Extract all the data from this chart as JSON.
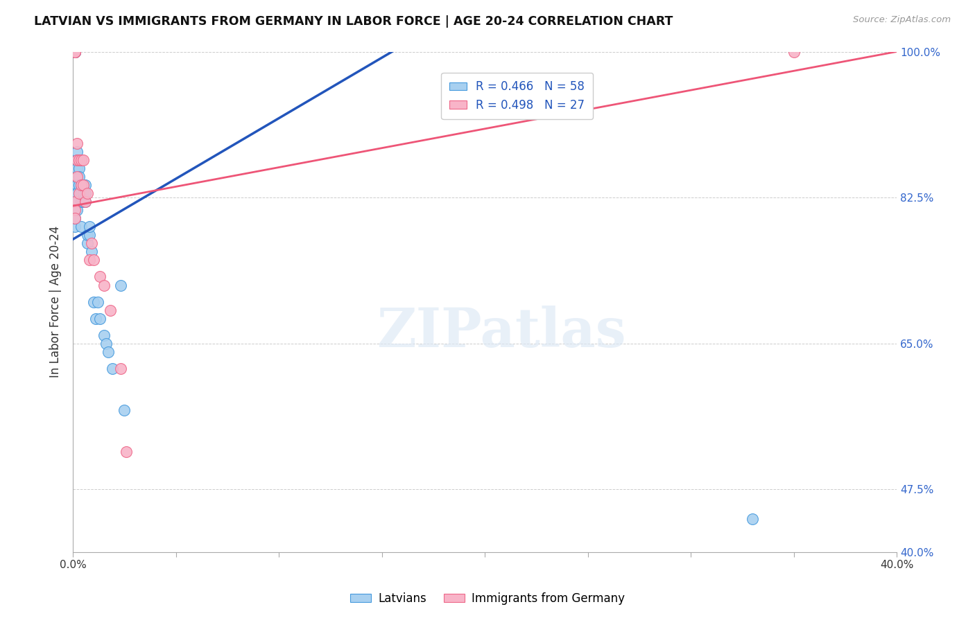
{
  "title": "LATVIAN VS IMMIGRANTS FROM GERMANY IN LABOR FORCE | AGE 20-24 CORRELATION CHART",
  "source": "Source: ZipAtlas.com",
  "ylabel": "In Labor Force | Age 20-24",
  "x_min": 0.0,
  "x_max": 0.4,
  "y_min": 0.4,
  "y_max": 1.0,
  "blue_r": 0.466,
  "blue_n": 58,
  "pink_r": 0.498,
  "pink_n": 27,
  "blue_color": "#a8d0f0",
  "pink_color": "#f8b4c8",
  "blue_edge_color": "#4499dd",
  "pink_edge_color": "#ee6688",
  "blue_line_color": "#2255bb",
  "pink_line_color": "#ee5577",
  "legend_label_blue": "Latvians",
  "legend_label_pink": "Immigrants from Germany",
  "blue_trend_x": [
    0.0,
    0.155
  ],
  "blue_trend_y": [
    0.775,
    1.0
  ],
  "pink_trend_x": [
    0.0,
    0.4
  ],
  "pink_trend_y": [
    0.815,
    1.0
  ],
  "blue_x": [
    0.001,
    0.001,
    0.001,
    0.001,
    0.001,
    0.001,
    0.001,
    0.001,
    0.001,
    0.001,
    0.001,
    0.001,
    0.001,
    0.001,
    0.001,
    0.001,
    0.001,
    0.001,
    0.001,
    0.001,
    0.002,
    0.002,
    0.002,
    0.002,
    0.002,
    0.002,
    0.002,
    0.003,
    0.003,
    0.003,
    0.003,
    0.004,
    0.004,
    0.004,
    0.004,
    0.004,
    0.005,
    0.005,
    0.005,
    0.006,
    0.006,
    0.006,
    0.007,
    0.007,
    0.008,
    0.008,
    0.009,
    0.01,
    0.011,
    0.012,
    0.013,
    0.015,
    0.016,
    0.017,
    0.019,
    0.023,
    0.025,
    0.33
  ],
  "blue_y": [
    1.0,
    1.0,
    1.0,
    1.0,
    1.0,
    1.0,
    1.0,
    1.0,
    1.0,
    1.0,
    1.0,
    1.0,
    1.0,
    1.0,
    1.0,
    1.0,
    0.79,
    0.8,
    0.82,
    0.83,
    0.88,
    0.87,
    0.86,
    0.84,
    0.83,
    0.82,
    0.81,
    0.87,
    0.86,
    0.85,
    0.84,
    0.87,
    0.84,
    0.83,
    0.82,
    0.79,
    0.84,
    0.83,
    0.82,
    0.82,
    0.84,
    0.83,
    0.77,
    0.78,
    0.78,
    0.79,
    0.76,
    0.7,
    0.68,
    0.7,
    0.68,
    0.66,
    0.65,
    0.64,
    0.62,
    0.72,
    0.57,
    0.44
  ],
  "pink_x": [
    0.001,
    0.001,
    0.001,
    0.001,
    0.001,
    0.001,
    0.001,
    0.002,
    0.002,
    0.002,
    0.003,
    0.003,
    0.004,
    0.004,
    0.005,
    0.005,
    0.006,
    0.007,
    0.008,
    0.009,
    0.01,
    0.013,
    0.015,
    0.018,
    0.023,
    0.35,
    0.026
  ],
  "pink_y": [
    1.0,
    1.0,
    1.0,
    1.0,
    0.82,
    0.81,
    0.8,
    0.89,
    0.87,
    0.85,
    0.87,
    0.83,
    0.87,
    0.84,
    0.87,
    0.84,
    0.82,
    0.83,
    0.75,
    0.77,
    0.75,
    0.73,
    0.72,
    0.69,
    0.62,
    1.0,
    0.52
  ],
  "watermark_text": "ZIPatlas",
  "background_color": "#ffffff",
  "grid_color": "#cccccc"
}
